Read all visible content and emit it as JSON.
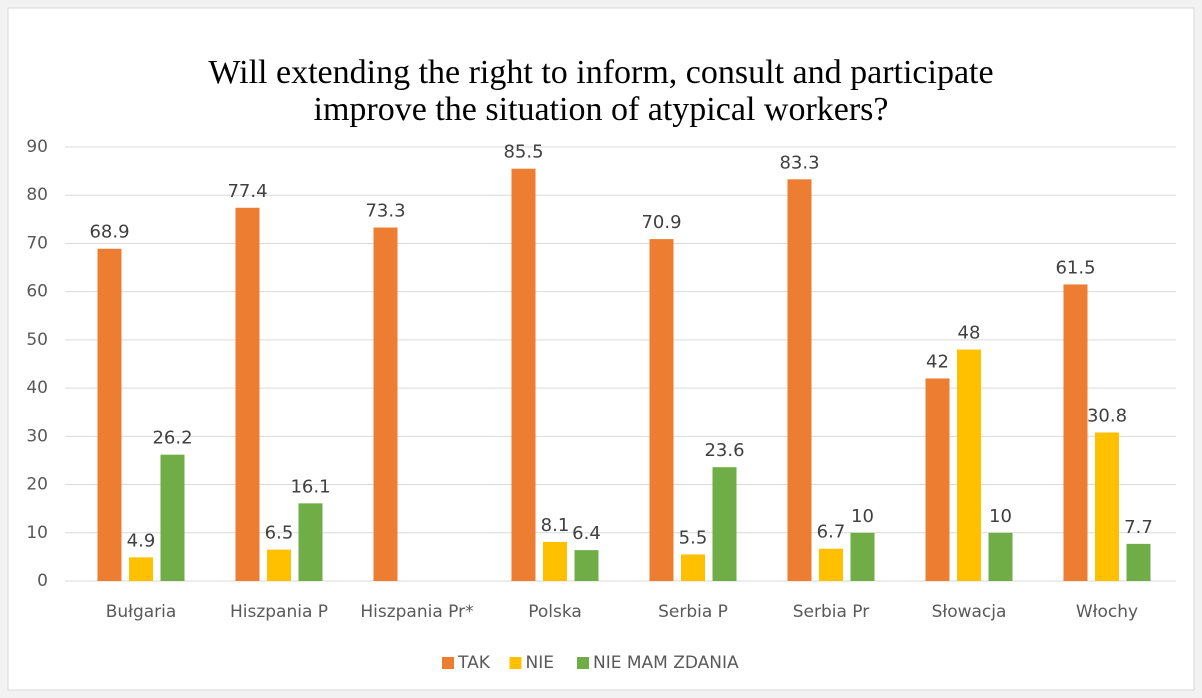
{
  "chart_data": {
    "type": "bar",
    "title": [
      "Will extending the right to inform, consult and participate",
      "improve the situation of atypical workers?"
    ],
    "categories": [
      "Bułgaria",
      "Hiszpania P",
      "Hiszpania Pr*",
      "Polska",
      "Serbia P",
      "Serbia Pr",
      "Słowacja",
      "Włochy"
    ],
    "series": [
      {
        "name": "TAK",
        "color": "#ed7d31",
        "values": [
          68.9,
          77.4,
          73.3,
          85.5,
          70.9,
          83.3,
          42,
          61.5
        ]
      },
      {
        "name": "NIE",
        "color": "#ffc000",
        "values": [
          4.9,
          6.5,
          null,
          8.1,
          5.5,
          6.7,
          48,
          30.8
        ]
      },
      {
        "name": "NIE MAM ZDANIA",
        "color": "#70ad47",
        "values": [
          26.2,
          16.1,
          null,
          6.4,
          23.6,
          10,
          10,
          7.7
        ]
      }
    ],
    "ylim": [
      0,
      90
    ],
    "yticks": [
      0,
      10,
      20,
      30,
      40,
      50,
      60,
      70,
      80,
      90
    ],
    "grid": true,
    "legend": "bottom"
  }
}
